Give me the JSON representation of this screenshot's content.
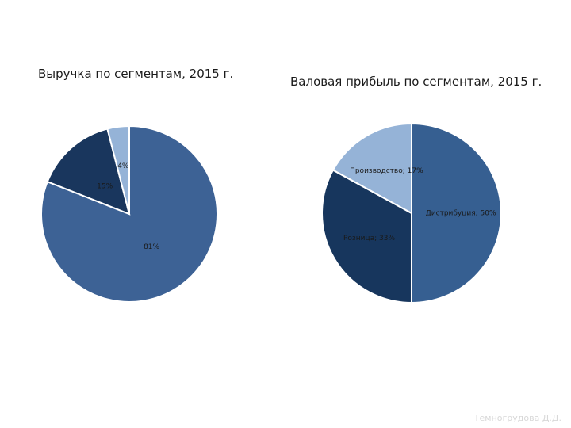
{
  "footer": "Темногрудова Д.Д.",
  "colors": {
    "segment_a": "#3d6295",
    "segment_b": "#19365d",
    "segment_c": "#95b3d7",
    "stroke": "#ffffff"
  },
  "chart_data": [
    {
      "type": "pie",
      "title": "Выручка по сегментам, 2015 г.",
      "slices": [
        {
          "label": "",
          "value": 81,
          "display": "81%",
          "color": "#3d6295"
        },
        {
          "label": "",
          "value": 15,
          "display": "15%",
          "color": "#19365d"
        },
        {
          "label": "",
          "value": 4,
          "display": "4%",
          "color": "#95b3d7"
        }
      ]
    },
    {
      "type": "pie",
      "title": "Валовая прибыль по сегментам, 2015 г.",
      "slices": [
        {
          "label": "Дистрибуция",
          "value": 50,
          "display": "Дистрибуция; 50%",
          "color": "#365f91"
        },
        {
          "label": "Розница",
          "value": 33,
          "display": "Розница; 33%",
          "color": "#17365d"
        },
        {
          "label": "Производство",
          "value": 17,
          "display": "Производство; 17%",
          "color": "#95b3d7"
        }
      ]
    }
  ]
}
